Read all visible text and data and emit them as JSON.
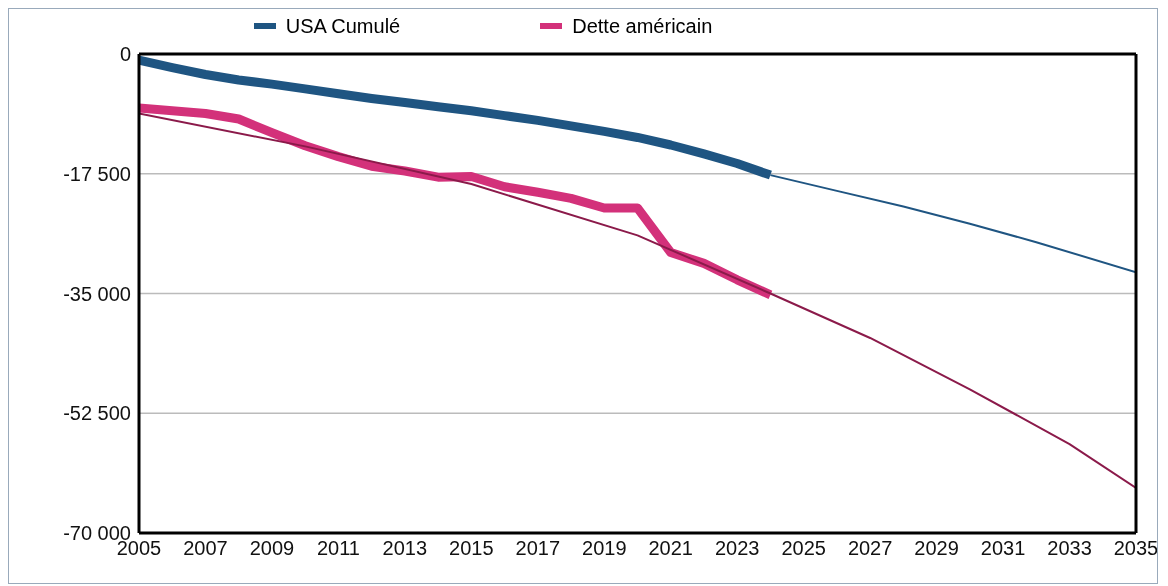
{
  "chart_data": {
    "type": "line",
    "xlim": [
      2005,
      2035
    ],
    "xticks": [
      2005,
      2007,
      2009,
      2011,
      2013,
      2015,
      2017,
      2019,
      2021,
      2023,
      2025,
      2027,
      2029,
      2031,
      2033,
      2035
    ],
    "ylim": [
      -70000,
      0
    ],
    "yticks": [
      {
        "value": -70000,
        "label": "-70 000"
      },
      {
        "value": -52500,
        "label": "-52 500"
      },
      {
        "value": -35000,
        "label": "-35 000"
      },
      {
        "value": -17500,
        "label": "-17 500"
      },
      0
    ],
    "grid": "y",
    "legend": "top",
    "marker": "none",
    "line_style": "solid",
    "series": [
      {
        "name": "USA Cumulé",
        "color": "#1f5582",
        "x": [
          2005,
          2006,
          2007,
          2008,
          2009,
          2010,
          2011,
          2012,
          2013,
          2014,
          2015,
          2016,
          2017,
          2018,
          2019,
          2020,
          2021,
          2022,
          2023,
          2024
        ],
        "values": [
          -900,
          -2000,
          -3000,
          -3800,
          -4400,
          -5100,
          -5800,
          -6500,
          -7100,
          -7700,
          -8300,
          -9000,
          -9700,
          -10500,
          -11300,
          -12200,
          -13300,
          -14600,
          -16000,
          -17700
        ]
      },
      {
        "name": "Dette américain",
        "color": "#d3317a",
        "x": [
          2005,
          2007,
          2008,
          2009,
          2010,
          2011,
          2012,
          2013,
          2014,
          2015,
          2016,
          2017,
          2018,
          2019,
          2020,
          2021,
          2022,
          2023,
          2024
        ],
        "values": [
          -7900,
          -8700,
          -9500,
          -11500,
          -13400,
          -15000,
          -16400,
          -17100,
          -18000,
          -17900,
          -19400,
          -20200,
          -21100,
          -22500,
          -22500,
          -29000,
          -30600,
          -33000,
          -35200
        ]
      },
      {
        "type": "line",
        "color": "#1f5582",
        "x": [
          2024,
          2026,
          2028,
          2030,
          2032,
          2035
        ],
        "values": [
          -17700,
          -20000,
          -22300,
          -24800,
          -27500,
          -31900
        ]
      },
      {
        "type": "line",
        "color": "#8b1a4a",
        "x": [
          2005,
          2010,
          2015,
          2020,
          2024,
          2027,
          2030,
          2033,
          2035
        ],
        "values": [
          -8700,
          -13500,
          -19000,
          -26500,
          -35000,
          -41500,
          -49000,
          -57000,
          -63400
        ]
      }
    ]
  }
}
